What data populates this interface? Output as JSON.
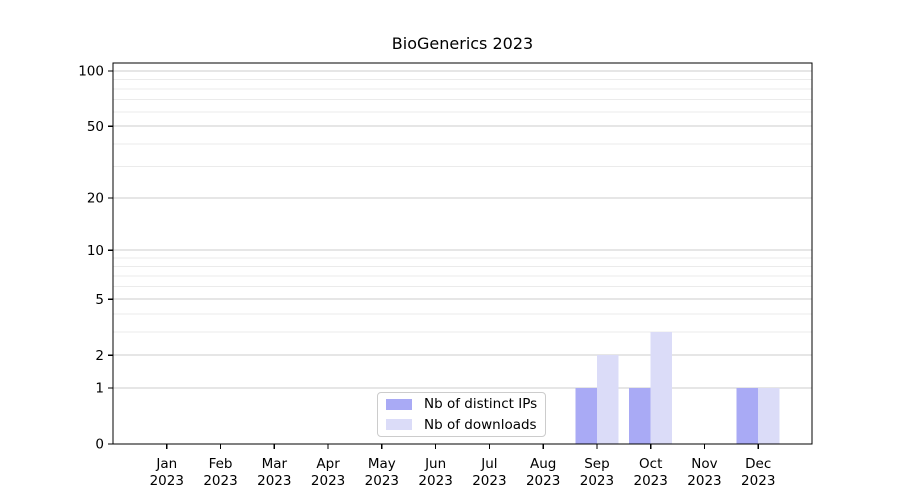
{
  "figure": {
    "title": "BioGenerics 2023"
  },
  "chart_data": {
    "type": "bar",
    "title": "BioGenerics 2023",
    "x_categories": [
      "Jan",
      "Feb",
      "Mar",
      "Apr",
      "May",
      "Jun",
      "Jul",
      "Aug",
      "Sep",
      "Oct",
      "Nov",
      "Dec"
    ],
    "x_year": "2023",
    "series": [
      {
        "name": "Nb of distinct IPs",
        "color": "#a9aaf5",
        "values": [
          0,
          0,
          0,
          0,
          0,
          0,
          0,
          0,
          1,
          1,
          0,
          1
        ]
      },
      {
        "name": "Nb of downloads",
        "color": "#dbdcf8",
        "values": [
          0,
          0,
          0,
          0,
          0,
          0,
          0,
          0,
          2,
          3,
          0,
          1
        ]
      }
    ],
    "y_ticks": [
      0,
      1,
      2,
      5,
      10,
      20,
      50,
      100
    ],
    "y_minor_gridlines": [
      3,
      4,
      6,
      7,
      8,
      9,
      30,
      40,
      60,
      70,
      80,
      90
    ],
    "y_scale": "log10(1+value)",
    "ylim": [
      0,
      108
    ],
    "xlim_months": [
      -1,
      12
    ],
    "grid": "horizontal",
    "legend": {
      "position": "lower-center-inside"
    },
    "colors": {
      "background": "#ffffff",
      "axis": "#000000",
      "text": "#000000",
      "grid_major": "#cccccc",
      "grid_minor": "#ebebeb",
      "legend_border": "#cccccc"
    }
  }
}
